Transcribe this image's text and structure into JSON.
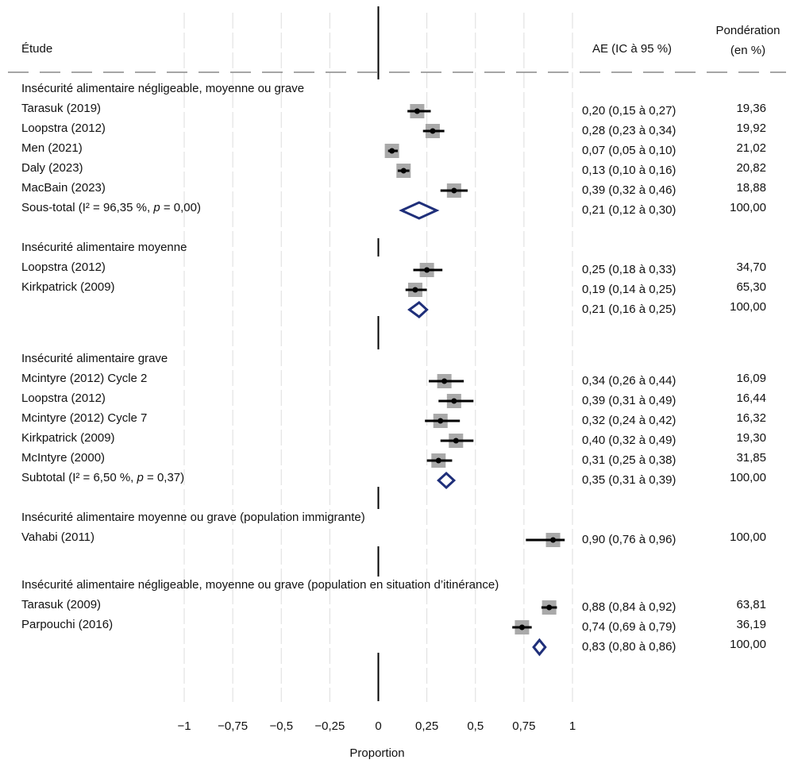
{
  "chart_data": {
    "type": "forest",
    "headers": {
      "study": "Étude",
      "effect": "AE (IC à 95 %)",
      "weight_line1": "Pondération",
      "weight_line2": "(en %)"
    },
    "xlabel": "Proportion",
    "xlim": [
      -1,
      1
    ],
    "ticks": [
      {
        "value": -1,
        "label": "−1"
      },
      {
        "value": -0.75,
        "label": "−0,75"
      },
      {
        "value": -0.5,
        "label": "−0,5"
      },
      {
        "value": -0.25,
        "label": "−0,25"
      },
      {
        "value": 0,
        "label": "0"
      },
      {
        "value": 0.25,
        "label": "0,25"
      },
      {
        "value": 0.5,
        "label": "0,5"
      },
      {
        "value": 0.75,
        "label": "0,75"
      },
      {
        "value": 1,
        "label": "1"
      }
    ],
    "colors": {
      "diamond": "#1f2f7a",
      "box": "#a9a9a9",
      "line": "#000000",
      "grid": "#dddddd",
      "dash": "#888888"
    },
    "rows": [
      {
        "kind": "group",
        "label": "Insécurité alimentaire négligeable, moyenne ou grave"
      },
      {
        "kind": "study",
        "label": "Tarasuk (2019)",
        "est": 0.2,
        "lo": 0.15,
        "hi": 0.27,
        "ci": "0,20 (0,15 à 0,27)",
        "weight": "19,36",
        "w": 19.36
      },
      {
        "kind": "study",
        "label": "Loopstra (2012)",
        "est": 0.28,
        "lo": 0.23,
        "hi": 0.34,
        "ci": "0,28 (0,23 à 0,34)",
        "weight": "19,92",
        "w": 19.92
      },
      {
        "kind": "study",
        "label": "Men (2021)",
        "est": 0.07,
        "lo": 0.05,
        "hi": 0.1,
        "ci": "0,07 (0,05 à 0,10)",
        "weight": "21,02",
        "w": 21.02
      },
      {
        "kind": "study",
        "label": "Daly (2023)",
        "est": 0.13,
        "lo": 0.1,
        "hi": 0.16,
        "ci": "0,13 (0,10 à 0,16)",
        "weight": "20,82",
        "w": 20.82
      },
      {
        "kind": "study",
        "label": "MacBain (2023)",
        "est": 0.39,
        "lo": 0.32,
        "hi": 0.46,
        "ci": "0,39 (0,32 à 0,46)",
        "weight": "18,88",
        "w": 18.88
      },
      {
        "kind": "subtotal",
        "label_pre": "Sous-total (I² = 96,35 %, ",
        "label_p": "p",
        "label_post": " = 0,00)",
        "est": 0.21,
        "lo": 0.12,
        "hi": 0.3,
        "ci": "0,21 (0,12 à 0,30)",
        "weight": "100,00"
      },
      {
        "kind": "group",
        "label": "Insécurité alimentaire moyenne"
      },
      {
        "kind": "study",
        "label": "Loopstra (2012)",
        "est": 0.25,
        "lo": 0.18,
        "hi": 0.33,
        "ci": "0,25 (0,18 à 0,33)",
        "weight": "34,70",
        "w": 34.7
      },
      {
        "kind": "study",
        "label": "Kirkpatrick (2009)",
        "est": 0.19,
        "lo": 0.14,
        "hi": 0.25,
        "ci": "0,19 (0,14 à 0,25)",
        "weight": "65,30",
        "w": 65.3
      },
      {
        "kind": "subtotal",
        "label_pre": "",
        "label_p": "",
        "label_post": "",
        "est": 0.21,
        "lo": 0.16,
        "hi": 0.25,
        "ci": "0,21 (0,16 à 0,25)",
        "weight": "100,00"
      },
      {
        "kind": "group",
        "label": "Insécurité alimentaire grave"
      },
      {
        "kind": "study",
        "label": "Mcintyre (2012) Cycle 2",
        "est": 0.34,
        "lo": 0.26,
        "hi": 0.44,
        "ci": "0,34 (0,26 à 0,44)",
        "weight": "16,09",
        "w": 16.09
      },
      {
        "kind": "study",
        "label": "Loopstra (2012)",
        "est": 0.39,
        "lo": 0.31,
        "hi": 0.49,
        "ci": "0,39 (0,31 à 0,49)",
        "weight": "16,44",
        "w": 16.44
      },
      {
        "kind": "study",
        "label": "Mcintyre (2012) Cycle 7",
        "est": 0.32,
        "lo": 0.24,
        "hi": 0.42,
        "ci": "0,32 (0,24 à 0,42)",
        "weight": "16,32",
        "w": 16.32
      },
      {
        "kind": "study",
        "label": "Kirkpatrick (2009)",
        "est": 0.4,
        "lo": 0.32,
        "hi": 0.49,
        "ci": "0,40 (0,32 à 0,49)",
        "weight": "19,30",
        "w": 19.3
      },
      {
        "kind": "study",
        "label": "McIntyre (2000)",
        "est": 0.31,
        "lo": 0.25,
        "hi": 0.38,
        "ci": "0,31 (0,25 à 0,38)",
        "weight": "31,85",
        "w": 31.85
      },
      {
        "kind": "subtotal",
        "label_pre": "Subtotal (I² = 6,50 %, ",
        "label_p": "p",
        "label_post": " = 0,37)",
        "est": 0.35,
        "lo": 0.31,
        "hi": 0.39,
        "ci": "0,35 (0,31 à 0,39)",
        "weight": "100,00"
      },
      {
        "kind": "group",
        "label": "Insécurité alimentaire moyenne ou grave (population immigrante)"
      },
      {
        "kind": "study",
        "label": "Vahabi (2011)",
        "est": 0.9,
        "lo": 0.76,
        "hi": 0.96,
        "ci": "0,90 (0,76 à 0,96)",
        "weight": "100,00",
        "w": 100.0
      },
      {
        "kind": "group",
        "label": "Insécurité alimentaire négligeable, moyenne ou grave (population en situation d’itinérance)"
      },
      {
        "kind": "study",
        "label": "Tarasuk (2009)",
        "est": 0.88,
        "lo": 0.84,
        "hi": 0.92,
        "ci": "0,88 (0,84 à 0,92)",
        "weight": "63,81",
        "w": 63.81
      },
      {
        "kind": "study",
        "label": "Parpouchi (2016)",
        "est": 0.74,
        "lo": 0.69,
        "hi": 0.79,
        "ci": "0,74 (0,69 à 0,79)",
        "weight": "36,19",
        "w": 36.19
      },
      {
        "kind": "subtotal",
        "label_pre": "",
        "label_p": "",
        "label_post": "",
        "est": 0.83,
        "lo": 0.8,
        "hi": 0.86,
        "ci": "0,83 (0,80 à 0,86)",
        "weight": "100,00"
      }
    ]
  }
}
